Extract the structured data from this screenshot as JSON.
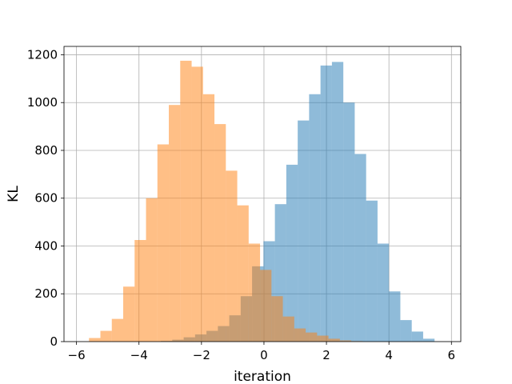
{
  "chart_data": {
    "type": "histogram",
    "title": "",
    "xlabel": "iteration",
    "ylabel": "KL",
    "xlim": [
      -6.4,
      6.3
    ],
    "ylim": [
      0,
      1235
    ],
    "xticks": [
      -6,
      -4,
      -2,
      0,
      2,
      4,
      6
    ],
    "xtick_labels": [
      "−6",
      "−4",
      "−2",
      "0",
      "2",
      "4",
      "6"
    ],
    "yticks": [
      0,
      200,
      400,
      600,
      800,
      1000,
      1200
    ],
    "ytick_labels": [
      "0",
      "200",
      "400",
      "600",
      "800",
      "1000",
      "1200"
    ],
    "grid": true,
    "bin_width": 0.365,
    "series": [
      {
        "color": "#1f77b4",
        "alpha": 0.5,
        "bins": [
          {
            "x0": -3.3,
            "count": 3
          },
          {
            "x0": -2.935,
            "count": 8
          },
          {
            "x0": -2.57,
            "count": 18
          },
          {
            "x0": -2.205,
            "count": 30
          },
          {
            "x0": -1.84,
            "count": 45
          },
          {
            "x0": -1.475,
            "count": 65
          },
          {
            "x0": -1.11,
            "count": 110
          },
          {
            "x0": -0.745,
            "count": 190
          },
          {
            "x0": -0.38,
            "count": 315
          },
          {
            "x0": -0.015,
            "count": 420
          },
          {
            "x0": 0.35,
            "count": 575
          },
          {
            "x0": 0.715,
            "count": 740
          },
          {
            "x0": 1.08,
            "count": 925
          },
          {
            "x0": 1.445,
            "count": 1035
          },
          {
            "x0": 1.81,
            "count": 1155
          },
          {
            "x0": 2.175,
            "count": 1170
          },
          {
            "x0": 2.54,
            "count": 1000
          },
          {
            "x0": 2.905,
            "count": 785
          },
          {
            "x0": 3.27,
            "count": 590
          },
          {
            "x0": 3.635,
            "count": 410
          },
          {
            "x0": 4.0,
            "count": 210
          },
          {
            "x0": 4.365,
            "count": 90
          },
          {
            "x0": 4.73,
            "count": 42
          },
          {
            "x0": 5.095,
            "count": 12
          }
        ]
      },
      {
        "color": "#ff7f0e",
        "alpha": 0.5,
        "bins": [
          {
            "x0": -5.6,
            "count": 15
          },
          {
            "x0": -5.235,
            "count": 45
          },
          {
            "x0": -4.87,
            "count": 95
          },
          {
            "x0": -4.505,
            "count": 230
          },
          {
            "x0": -4.14,
            "count": 425
          },
          {
            "x0": -3.775,
            "count": 600
          },
          {
            "x0": -3.41,
            "count": 825
          },
          {
            "x0": -3.045,
            "count": 990
          },
          {
            "x0": -2.68,
            "count": 1175
          },
          {
            "x0": -2.315,
            "count": 1150
          },
          {
            "x0": -1.95,
            "count": 1035
          },
          {
            "x0": -1.585,
            "count": 910
          },
          {
            "x0": -1.22,
            "count": 715
          },
          {
            "x0": -0.855,
            "count": 570
          },
          {
            "x0": -0.49,
            "count": 410
          },
          {
            "x0": -0.125,
            "count": 300
          },
          {
            "x0": 0.24,
            "count": 190
          },
          {
            "x0": 0.605,
            "count": 105
          },
          {
            "x0": 0.97,
            "count": 55
          },
          {
            "x0": 1.335,
            "count": 38
          },
          {
            "x0": 1.7,
            "count": 25
          },
          {
            "x0": 2.065,
            "count": 12
          },
          {
            "x0": 2.43,
            "count": 5
          },
          {
            "x0": 2.795,
            "count": 2
          }
        ]
      }
    ]
  }
}
